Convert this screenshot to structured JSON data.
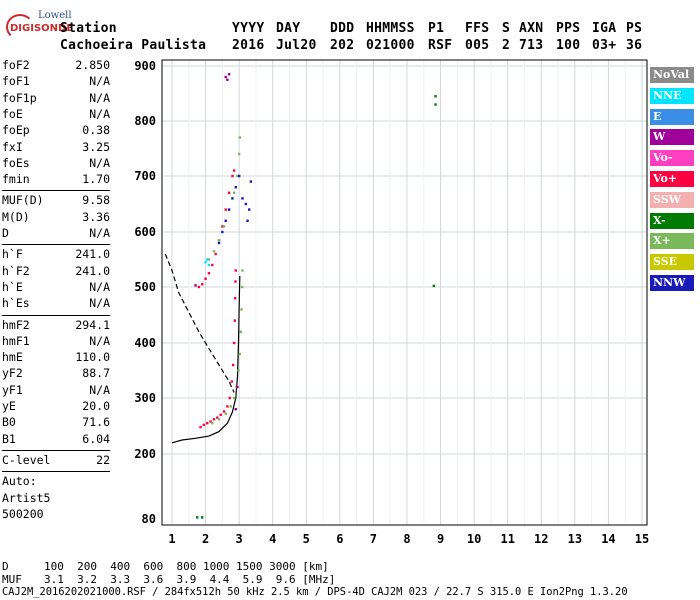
{
  "logo": {
    "top": "Lowell",
    "bottom": "DIGISONDE"
  },
  "header": {
    "row1": {
      "station": "Station",
      "yyyy": "YYYY",
      "day": "DAY",
      "ddd": "DDD",
      "hhmmss": "HHMMSS",
      "p1": "P1",
      "ffs": "FFS",
      "s": "S",
      "axn": "AXN",
      "pps": "PPS",
      "iga": "IGA",
      "ps": "PS"
    },
    "row2": {
      "station": "Cachoeira Paulista",
      "yyyy": "2016",
      "day": "Jul20",
      "ddd": "202",
      "hhmmss": "021000",
      "p1": "RSF",
      "ffs": "005",
      "s": "2",
      "axn": "713",
      "pps": "100",
      "iga": "03+",
      "ps": "36"
    }
  },
  "params": {
    "group1": [
      {
        "name": "foF2",
        "value": "2.850"
      },
      {
        "name": "foF1",
        "value": "N/A"
      },
      {
        "name": "foF1p",
        "value": "N/A"
      },
      {
        "name": "foE",
        "value": "N/A"
      },
      {
        "name": "foEp",
        "value": "0.38"
      },
      {
        "name": "fxI",
        "value": "3.25"
      },
      {
        "name": "foEs",
        "value": "N/A"
      },
      {
        "name": "fmin",
        "value": "1.70"
      }
    ],
    "group2": [
      {
        "name": "MUF(D)",
        "value": "9.58"
      },
      {
        "name": "M(D)",
        "value": "3.36"
      },
      {
        "name": "D",
        "value": "N/A"
      }
    ],
    "group3": [
      {
        "name": "h`F",
        "value": "241.0"
      },
      {
        "name": "h`F2",
        "value": "241.0"
      },
      {
        "name": "h`E",
        "value": "N/A"
      },
      {
        "name": "h`Es",
        "value": "N/A"
      }
    ],
    "group4": [
      {
        "name": "hmF2",
        "value": "294.1"
      },
      {
        "name": "hmF1",
        "value": "N/A"
      },
      {
        "name": "hmE",
        "value": "110.0"
      },
      {
        "name": "yF2",
        "value": "88.7"
      },
      {
        "name": "yF1",
        "value": "N/A"
      },
      {
        "name": "yE",
        "value": "20.0"
      },
      {
        "name": "B0",
        "value": "71.6"
      },
      {
        "name": "B1",
        "value": "6.04"
      }
    ],
    "group5": [
      {
        "name": "C-level",
        "value": "22"
      }
    ],
    "group6": [
      {
        "name": "Auto:",
        "value": ""
      },
      {
        "name": "Artist5",
        "value": ""
      },
      {
        "name": "500200",
        "value": ""
      }
    ]
  },
  "footer": {
    "d_label": "D",
    "d_values": "100  200  400  600  800 1000 1500 3000 [km]",
    "muf_label": "MUF",
    "muf_values": "3.1  3.2  3.3  3.6  3.9  4.4  5.9  9.6 [MHz]",
    "file_line": "CAJ2M_2016202021000.RSF / 284fx512h 50 kHz 2.5 km / DPS-4D CAJ2M 023 / 22.7 S 315.0 E Ion2Png 1.3.20"
  },
  "colors": {
    "NoVal": "#8a8a8a",
    "NNE": "#00e5ff",
    "E": "#3a8ee6",
    "W": "#a0009a",
    "Vo-": "#ff3fbf",
    "Vo+": "#ff0040",
    "SSW": "#f4b0b0",
    "X-": "#007a00",
    "X+": "#7ab85a",
    "SSE": "#c8c800",
    "NNW": "#1a1ab8"
  },
  "chart_data": {
    "type": "scatter",
    "xlabel": "",
    "ylabel": "",
    "xlim": [
      0.8,
      15.1
    ],
    "ylim": [
      80,
      905
    ],
    "x_ticks": [
      1,
      2,
      3,
      4,
      5,
      6,
      7,
      8,
      9,
      10,
      11,
      12,
      13,
      14,
      15
    ],
    "y_ticks": [
      80,
      200,
      300,
      400,
      500,
      600,
      700,
      800,
      900
    ],
    "legend": [
      "NoVal",
      "NNE",
      "E",
      "W",
      "Vo-",
      "Vo+",
      "SSW",
      "X-",
      "X+",
      "SSE",
      "NNW"
    ],
    "legend_position": "right",
    "series": [
      {
        "name": "Vo+",
        "color": "#ff0040",
        "points": [
          [
            1.85,
            248
          ],
          [
            1.95,
            252
          ],
          [
            2.05,
            255
          ],
          [
            2.15,
            258
          ],
          [
            2.25,
            262
          ],
          [
            2.35,
            265
          ],
          [
            2.45,
            270
          ],
          [
            2.55,
            276
          ],
          [
            2.65,
            285
          ],
          [
            2.72,
            300
          ],
          [
            2.78,
            330
          ],
          [
            2.82,
            360
          ],
          [
            2.85,
            400
          ],
          [
            2.87,
            440
          ],
          [
            2.88,
            480
          ],
          [
            2.89,
            510
          ],
          [
            2.9,
            530
          ],
          [
            1.8,
            500
          ],
          [
            1.9,
            505
          ],
          [
            2.0,
            515
          ],
          [
            2.1,
            525
          ],
          [
            2.2,
            540
          ],
          [
            2.3,
            560
          ],
          [
            2.4,
            585
          ],
          [
            2.5,
            610
          ],
          [
            2.6,
            640
          ],
          [
            2.7,
            670
          ],
          [
            2.8,
            700
          ],
          [
            2.85,
            710
          ]
        ]
      },
      {
        "name": "X+",
        "color": "#7ab85a",
        "points": [
          [
            2.2,
            255
          ],
          [
            2.4,
            262
          ],
          [
            2.6,
            272
          ],
          [
            2.75,
            285
          ],
          [
            2.85,
            300
          ],
          [
            2.92,
            320
          ],
          [
            2.98,
            350
          ],
          [
            3.02,
            380
          ],
          [
            3.05,
            420
          ],
          [
            3.07,
            460
          ],
          [
            3.09,
            500
          ],
          [
            3.1,
            530
          ],
          [
            2.1,
            550
          ],
          [
            2.25,
            565
          ],
          [
            2.4,
            585
          ],
          [
            2.55,
            610
          ],
          [
            2.7,
            640
          ],
          [
            2.85,
            670
          ],
          [
            2.95,
            700
          ],
          [
            3.0,
            740
          ],
          [
            3.02,
            770
          ]
        ]
      },
      {
        "name": "NNW",
        "color": "#1a1ab8",
        "points": [
          [
            2.4,
            580
          ],
          [
            2.5,
            600
          ],
          [
            2.6,
            620
          ],
          [
            2.7,
            640
          ],
          [
            2.8,
            660
          ],
          [
            2.9,
            680
          ],
          [
            3.0,
            700
          ],
          [
            3.1,
            660
          ],
          [
            3.2,
            650
          ],
          [
            3.3,
            640
          ],
          [
            3.35,
            690
          ],
          [
            3.25,
            620
          ]
        ]
      },
      {
        "name": "X-",
        "color": "#007a00",
        "points": [
          [
            8.85,
            845
          ],
          [
            8.85,
            830
          ],
          [
            8.8,
            502
          ],
          [
            1.75,
            83
          ],
          [
            1.9,
            83
          ]
        ]
      },
      {
        "name": "W",
        "color": "#a0009a",
        "points": [
          [
            1.7,
            503
          ],
          [
            2.6,
            880
          ],
          [
            2.7,
            885
          ],
          [
            2.65,
            875
          ],
          [
            2.9,
            280
          ],
          [
            2.95,
            320
          ]
        ]
      },
      {
        "name": "NNE",
        "color": "#00e5ff",
        "points": [
          [
            2.0,
            545
          ],
          [
            2.05,
            550
          ],
          [
            2.1,
            540
          ]
        ]
      }
    ],
    "curves": [
      {
        "name": "profile",
        "style": "solid",
        "points": [
          [
            1.0,
            220
          ],
          [
            1.3,
            225
          ],
          [
            1.7,
            228
          ],
          [
            2.1,
            232
          ],
          [
            2.4,
            240
          ],
          [
            2.65,
            255
          ],
          [
            2.8,
            275
          ],
          [
            2.9,
            300
          ],
          [
            2.95,
            340
          ],
          [
            2.98,
            400
          ],
          [
            3.0,
            460
          ],
          [
            3.02,
            520
          ]
        ]
      },
      {
        "name": "sweep",
        "style": "dashed",
        "points": [
          [
            0.8,
            560
          ],
          [
            1.0,
            530
          ],
          [
            1.2,
            490
          ],
          [
            1.5,
            455
          ],
          [
            1.8,
            420
          ],
          [
            2.1,
            390
          ],
          [
            2.4,
            360
          ],
          [
            2.7,
            330
          ],
          [
            2.85,
            310
          ]
        ]
      }
    ]
  }
}
